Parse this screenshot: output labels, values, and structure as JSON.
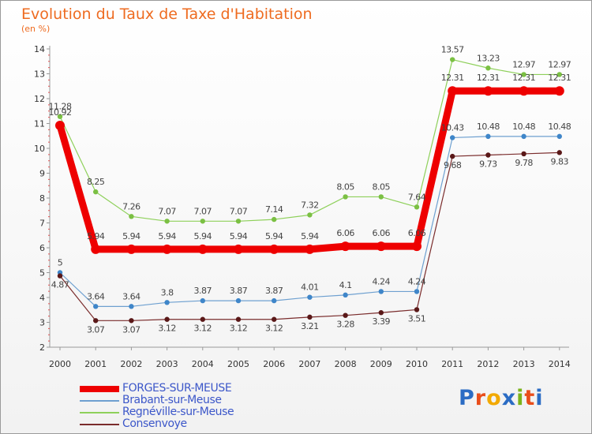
{
  "header": {
    "title": "Evolution du Taux de Taxe d'Habitation",
    "unit": "(en %)"
  },
  "logo": {
    "text": "Proxiti",
    "colors": [
      "#2b6cc4",
      "#e94e1b",
      "#f2a900",
      "#2b6cc4",
      "#7bb31a",
      "#e94e1b",
      "#2b6cc4"
    ]
  },
  "chart_data": {
    "type": "line",
    "title": "Evolution du Taux de Taxe d'Habitation",
    "ylabel": "(en %)",
    "xlabel": "",
    "x": [
      "2000",
      "2001",
      "2002",
      "2003",
      "2004",
      "2005",
      "2006",
      "2007",
      "2008",
      "2009",
      "2010",
      "2011",
      "2012",
      "2013",
      "2014"
    ],
    "ylim": [
      2,
      14
    ],
    "yticks": [
      "2",
      "3",
      "4",
      "5",
      "6",
      "7",
      "8",
      "9",
      "10",
      "11",
      "12",
      "13",
      "14"
    ],
    "grid": false,
    "legend_position": "bottom-left",
    "series": [
      {
        "name": "FORGES-SUR-MEUSE",
        "color": "#ee0000",
        "values": [
          10.92,
          5.94,
          5.94,
          5.94,
          5.94,
          5.94,
          5.94,
          5.94,
          6.06,
          6.06,
          6.06,
          12.31,
          12.31,
          12.31,
          12.31
        ],
        "labels": [
          "10.92",
          "5.94",
          "5.94",
          "5.94",
          "5.94",
          "5.94",
          "5.94",
          "5.94",
          "6.06",
          "6.06",
          "6.06",
          "12.31",
          "12.31",
          "12.31",
          "12.31"
        ]
      },
      {
        "name": "Brabant-sur-Meuse",
        "color": "#6ea0d0",
        "dot": "#3f86c9",
        "values": [
          5,
          3.64,
          3.64,
          3.8,
          3.87,
          3.87,
          3.87,
          4.01,
          4.1,
          4.24,
          4.24,
          10.43,
          10.48,
          10.48,
          10.48
        ],
        "labels": [
          "5",
          "3.64",
          "3.64",
          "3.8",
          "3.87",
          "3.87",
          "3.87",
          "4.01",
          "4.1",
          "4.24",
          "4.24",
          "10.43",
          "10.48",
          "10.48",
          "10.48"
        ]
      },
      {
        "name": "Regnéville-sur-Meuse",
        "color": "#8ed05a",
        "dot": "#7bc043",
        "values": [
          11.28,
          8.25,
          7.26,
          7.07,
          7.07,
          7.07,
          7.14,
          7.32,
          8.05,
          8.05,
          7.64,
          13.57,
          13.23,
          12.97,
          12.97
        ],
        "labels": [
          "11.28",
          "8.25",
          "7.26",
          "7.07",
          "7.07",
          "7.07",
          "7.14",
          "7.32",
          "8.05",
          "8.05",
          "7.64",
          "13.57",
          "13.23",
          "12.97",
          "12.97"
        ]
      },
      {
        "name": "Consenvoye",
        "color": "#7a2c2c",
        "dot": "#5a1818",
        "values": [
          4.87,
          3.07,
          3.07,
          3.12,
          3.12,
          3.12,
          3.12,
          3.21,
          3.28,
          3.39,
          3.51,
          9.68,
          9.73,
          9.78,
          9.83
        ],
        "labels": [
          "4.87",
          "3.07",
          "3.07",
          "3.12",
          "3.12",
          "3.12",
          "3.12",
          "3.21",
          "3.28",
          "3.39",
          "3.51",
          "9.68",
          "9.73",
          "9.78",
          "9.83"
        ]
      }
    ]
  }
}
